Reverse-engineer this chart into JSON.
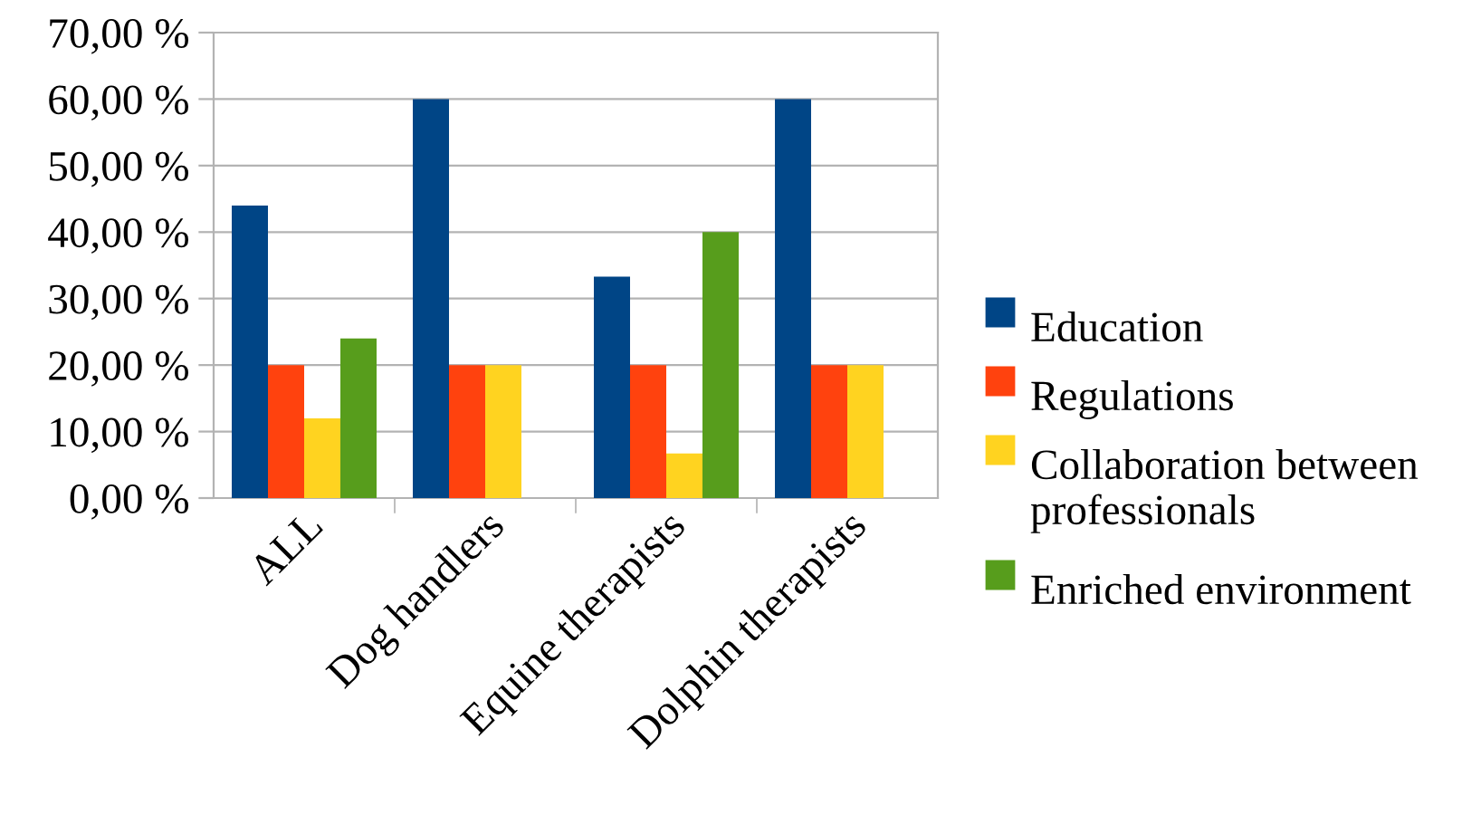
{
  "chart_data": {
    "type": "bar",
    "categories": [
      "ALL",
      "Dog handlers",
      "Equine therapists",
      "Dolphin therapists"
    ],
    "series": [
      {
        "name": "Education",
        "color": "#004586",
        "values": [
          44,
          60,
          33.3,
          60
        ]
      },
      {
        "name": "Regulations",
        "color": "#ff420e",
        "values": [
          20,
          20,
          20,
          20
        ]
      },
      {
        "name": "Collaboration between professionals",
        "color": "#ffd320",
        "values": [
          12,
          20,
          6.7,
          20
        ]
      },
      {
        "name": "Enriched environment",
        "color": "#579d1c",
        "values": [
          24,
          null,
          40,
          null
        ]
      }
    ],
    "ylim": [
      0,
      70
    ],
    "yticks": [
      {
        "value": 0,
        "label": "0,00 %"
      },
      {
        "value": 10,
        "label": "10,00 %"
      },
      {
        "value": 20,
        "label": "20,00 %"
      },
      {
        "value": 30,
        "label": "30,00 %"
      },
      {
        "value": 40,
        "label": "40,00 %"
      },
      {
        "value": 50,
        "label": "50,00 %"
      },
      {
        "value": 60,
        "label": "60,00 %"
      },
      {
        "value": 70,
        "label": "70,00 %"
      }
    ],
    "grid": "y",
    "legend": "right"
  }
}
